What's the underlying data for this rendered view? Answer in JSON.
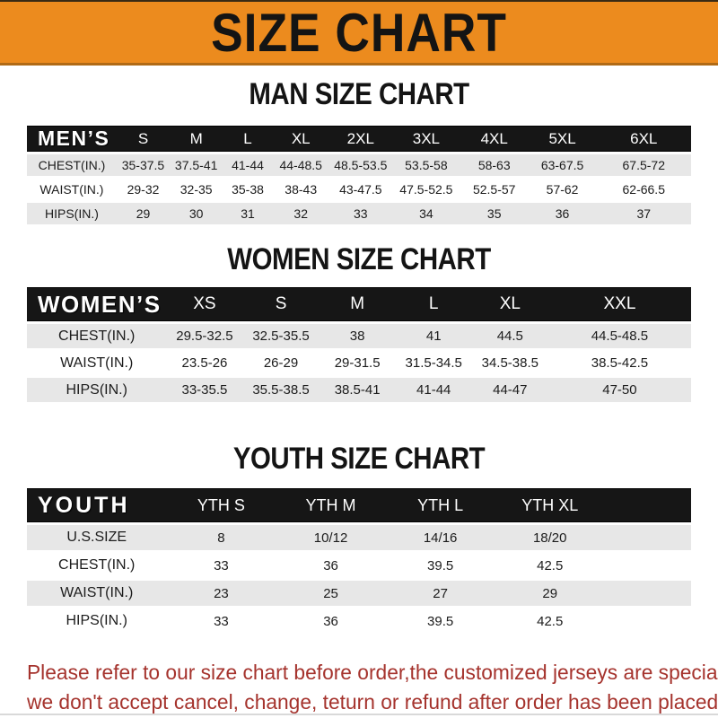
{
  "banner": {
    "title": "SIZE CHART"
  },
  "colors": {
    "banner_orange": "#EC8B1E",
    "header_bar_black": "#161616",
    "row_gray": "#E7E7E7",
    "row_white": "#FFFFFF",
    "footer_red": "#A5332D",
    "title_black": "#141414"
  },
  "chart_data": [
    {
      "type": "table",
      "title": "MAN SIZE CHART",
      "header": [
        "MEN’S",
        "S",
        "M",
        "L",
        "XL",
        "2XL",
        "3XL",
        "4XL",
        "5XL",
        "6XL"
      ],
      "rows": [
        [
          "CHEST(IN.)",
          "35-37.5",
          "37.5-41",
          "41-44",
          "44-48.5",
          "48.5-53.5",
          "53.5-58",
          "58-63",
          "63-67.5",
          "67.5-72"
        ],
        [
          "WAIST(IN.)",
          "29-32",
          "32-35",
          "35-38",
          "38-43",
          "43-47.5",
          "47.5-52.5",
          "52.5-57",
          "57-62",
          "62-66.5"
        ],
        [
          "HIPS(IN.)",
          "29",
          "30",
          "31",
          "32",
          "33",
          "34",
          "35",
          "36",
          "37"
        ]
      ]
    },
    {
      "type": "table",
      "title": "WOMEN SIZE CHART",
      "header": [
        "WOMEN’S",
        "XS",
        "S",
        "M",
        "L",
        "XL",
        "XXL"
      ],
      "rows": [
        [
          "CHEST(IN.)",
          "29.5-32.5",
          "32.5-35.5",
          "38",
          "41",
          "44.5",
          "44.5-48.5"
        ],
        [
          "WAIST(IN.)",
          "23.5-26",
          "26-29",
          "29-31.5",
          "31.5-34.5",
          "34.5-38.5",
          "38.5-42.5"
        ],
        [
          "HIPS(IN.)",
          "33-35.5",
          "35.5-38.5",
          "38.5-41",
          "41-44",
          "44-47",
          "47-50"
        ]
      ]
    },
    {
      "type": "table",
      "title": "YOUTH SIZE CHART",
      "header": [
        "YOUTH",
        "YTH S",
        "YTH M",
        "YTH L",
        "YTH XL"
      ],
      "rows": [
        [
          "U.S.SIZE",
          "8",
          "10/12",
          "14/16",
          "18/20"
        ],
        [
          "CHEST(IN.)",
          "33",
          "36",
          "39.5",
          "42.5"
        ],
        [
          "WAIST(IN.)",
          "23",
          "25",
          "27",
          "29"
        ],
        [
          "HIPS(IN.)",
          "33",
          "36",
          "39.5",
          "42.5"
        ]
      ]
    }
  ],
  "footer": {
    "line1": "Please refer to our size chart before order,the customized jerseys are special products,",
    "line2": "we don't accept cancel, change, teturn or refund after order has been placed!"
  }
}
